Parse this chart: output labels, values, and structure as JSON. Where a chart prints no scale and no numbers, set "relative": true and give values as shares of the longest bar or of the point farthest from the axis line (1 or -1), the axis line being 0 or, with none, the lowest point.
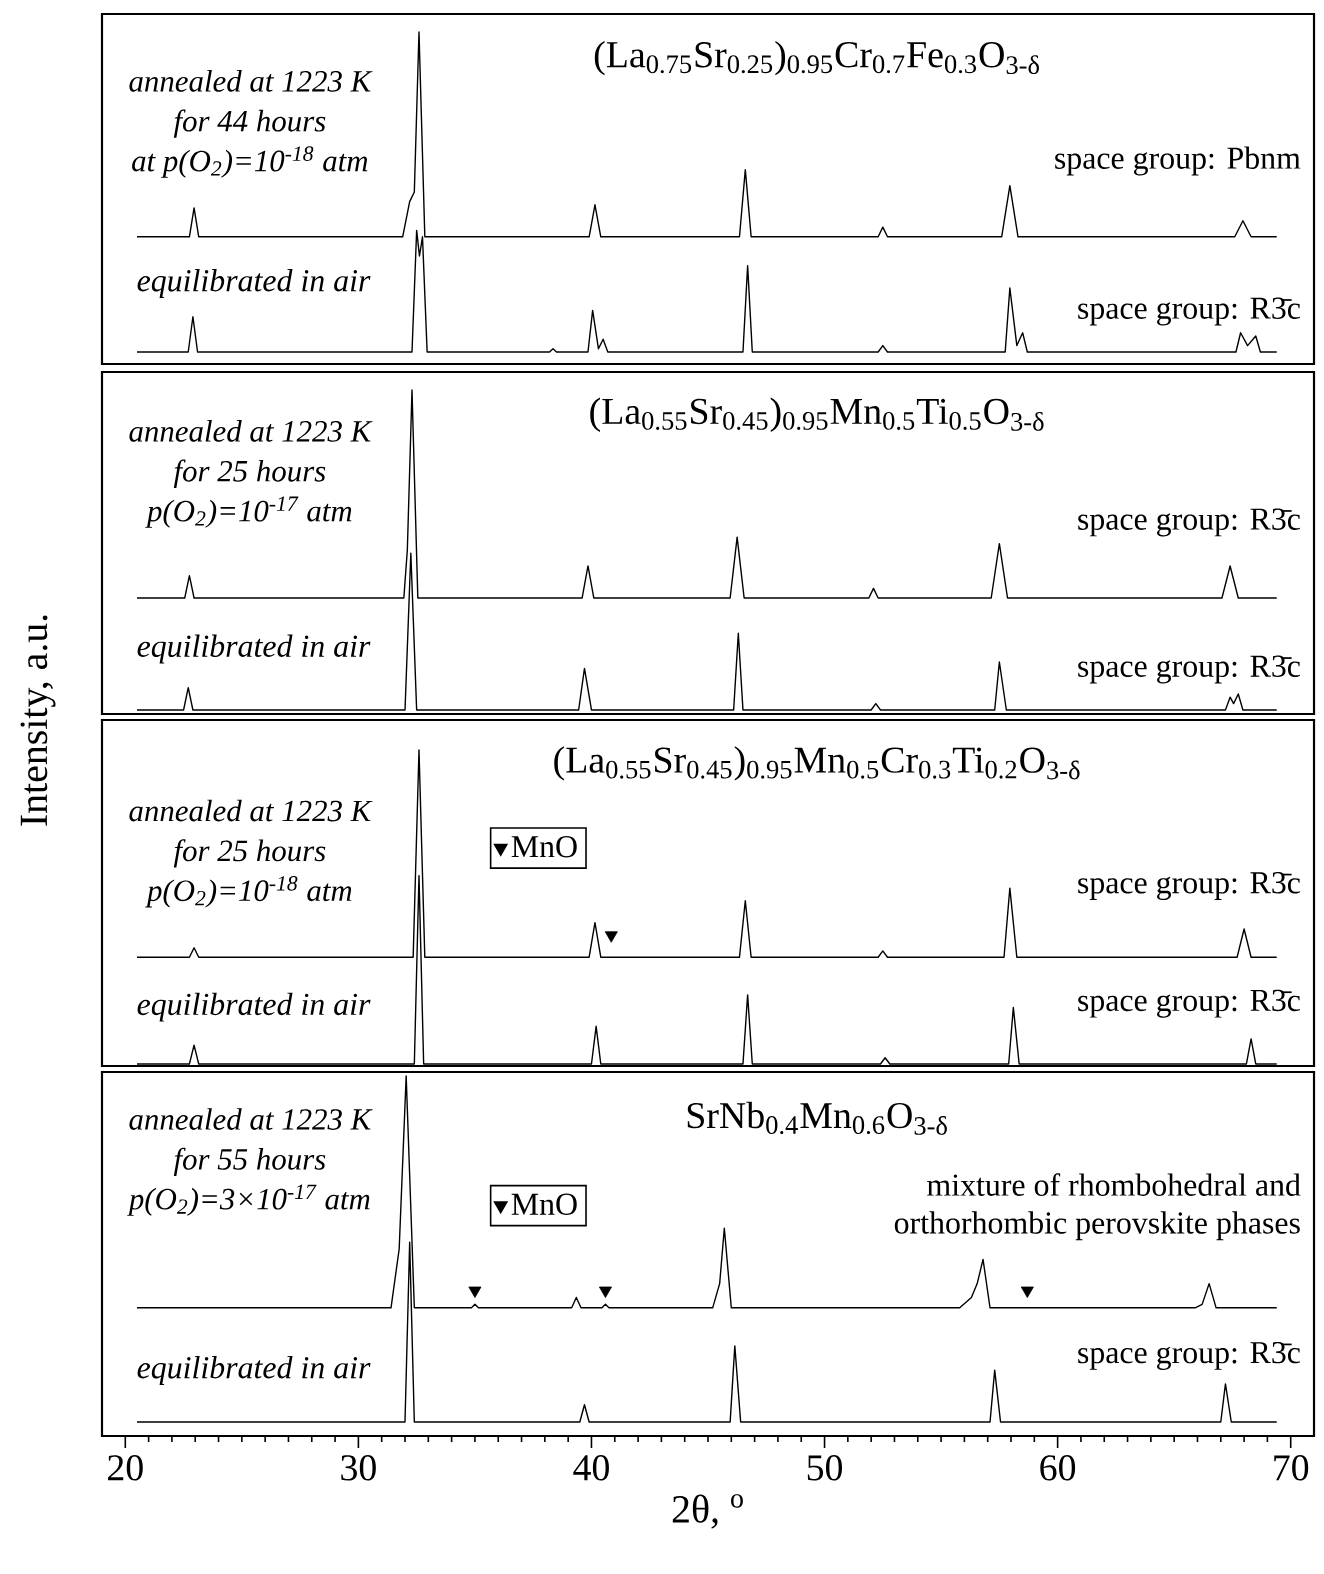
{
  "chart_data": [
    {
      "type": "line",
      "relative": true,
      "title": "(La$_{0.75}$Sr$_{0.25}$)$_{0.95}$Cr$_{0.7}$Fe$_{0.3}$O$_{3-δ}$",
      "xlim": [
        19,
        71
      ],
      "tick_labels": false,
      "annotations": [
        "annealed at 1223 K",
        "for 44 hours",
        "at p(O$_{2}$)=10$^{-18}$ atm",
        "space group: Pbnm",
        "space group: R3̄c"
      ],
      "series": [
        {
          "color": "#000000",
          "x": [
            20.5,
            22.75,
            22.95,
            23.15,
            31.9,
            32.2,
            32.4,
            32.6,
            32.85,
            39.9,
            40.15,
            40.4,
            46.35,
            46.6,
            46.85,
            52.3,
            52.5,
            52.7,
            57.6,
            57.95,
            58.3,
            67.6,
            67.95,
            68.3,
            69.4
          ],
          "values": [
            0.36,
            0.36,
            0.45,
            0.36,
            0.36,
            0.47,
            0.5,
            1.0,
            0.36,
            0.36,
            0.46,
            0.36,
            0.36,
            0.57,
            0.36,
            0.36,
            0.39,
            0.36,
            0.36,
            0.52,
            0.36,
            0.36,
            0.41,
            0.36,
            0.36
          ]
        },
        {
          "name": "equilibrated in air",
          "color": "#000000",
          "x": [
            20.5,
            22.7,
            22.9,
            23.1,
            32.3,
            32.5,
            32.62,
            32.75,
            32.95,
            38.2,
            38.35,
            38.5,
            39.85,
            40.05,
            40.3,
            40.5,
            40.7,
            46.5,
            46.7,
            46.9,
            52.3,
            52.5,
            52.7,
            57.75,
            57.95,
            58.25,
            58.5,
            58.7,
            67.65,
            67.85,
            68.15,
            68.5,
            68.7,
            69.4
          ],
          "values": [
            0,
            0,
            0.11,
            0,
            0,
            0.38,
            0.3,
            0.36,
            0,
            0,
            0.01,
            0,
            0,
            0.13,
            0.01,
            0.04,
            0,
            0,
            0.27,
            0,
            0,
            0.02,
            0,
            0,
            0.2,
            0.02,
            0.06,
            0,
            0,
            0.06,
            0.02,
            0.05,
            0,
            0
          ]
        }
      ]
    },
    {
      "type": "line",
      "relative": true,
      "title": "(La$_{0.55}$Sr$_{0.45}$)$_{0.95}$Mn$_{0.5}$Ti$_{0.5}$O$_{3-δ}$",
      "xlim": [
        19,
        71
      ],
      "tick_labels": false,
      "annotations": [
        "annealed at 1223 K",
        "for 25 hours",
        "p(O$_{2}$)=10$^{-17}$ atm",
        "space group: R3̄c",
        "space group: R3̄c"
      ],
      "series": [
        {
          "color": "#000000",
          "x": [
            20.5,
            22.55,
            22.75,
            22.95,
            31.95,
            32.1,
            32.3,
            32.55,
            39.6,
            39.85,
            40.1,
            45.95,
            46.25,
            46.55,
            51.9,
            52.1,
            52.3,
            57.15,
            57.5,
            57.85,
            67.05,
            67.4,
            67.75,
            69.4
          ],
          "values": [
            0.35,
            0.35,
            0.42,
            0.35,
            0.35,
            0.5,
            1.0,
            0.35,
            0.35,
            0.45,
            0.35,
            0.35,
            0.54,
            0.35,
            0.35,
            0.38,
            0.35,
            0.35,
            0.52,
            0.35,
            0.35,
            0.45,
            0.35,
            0.35
          ]
        },
        {
          "name": "equilibrated in air",
          "color": "#000000",
          "x": [
            20.5,
            22.5,
            22.7,
            22.9,
            32.0,
            32.25,
            32.5,
            39.45,
            39.7,
            40.0,
            46.1,
            46.3,
            46.5,
            52.0,
            52.2,
            52.4,
            57.3,
            57.5,
            57.8,
            67.2,
            67.4,
            67.55,
            67.75,
            67.95,
            69.4
          ],
          "values": [
            0,
            0,
            0.07,
            0,
            0,
            0.49,
            0,
            0,
            0.13,
            0,
            0,
            0.24,
            0,
            0,
            0.02,
            0,
            0,
            0.15,
            0,
            0,
            0.04,
            0.02,
            0.05,
            0,
            0
          ]
        }
      ]
    },
    {
      "type": "line",
      "relative": true,
      "title": "(La$_{0.55}$Sr$_{0.45}$)$_{0.95}$Mn$_{0.5}$Cr$_{0.3}$Ti$_{0.2}$O$_{3-δ}$",
      "xlim": [
        19,
        71
      ],
      "tick_labels": false,
      "ylabel": "Intensity, a.u.",
      "legend": "top left",
      "annotations": [
        "annealed at 1223 K",
        "for 25 hours",
        "p(O$_{2}$)=10$^{-18}$ atm",
        "space group: R3̄c",
        "space group: R3̄c"
      ],
      "series": [
        {
          "color": "#000000",
          "x": [
            20.5,
            22.75,
            22.95,
            23.15,
            32.35,
            32.6,
            32.85,
            39.9,
            40.15,
            40.4,
            46.35,
            46.6,
            46.85,
            52.3,
            52.5,
            52.7,
            57.7,
            57.95,
            58.25,
            67.7,
            68.0,
            68.3,
            69.4
          ],
          "values": [
            0.34,
            0.34,
            0.37,
            0.34,
            0.34,
            1.0,
            0.34,
            0.34,
            0.45,
            0.34,
            0.34,
            0.52,
            0.34,
            0.34,
            0.36,
            0.34,
            0.34,
            0.56,
            0.34,
            0.34,
            0.43,
            0.34,
            0.34
          ]
        },
        {
          "name": "equilibrated in air",
          "color": "#000000",
          "x": [
            20.5,
            22.75,
            22.95,
            23.15,
            32.4,
            32.6,
            32.8,
            40.0,
            40.2,
            40.4,
            46.5,
            46.7,
            46.9,
            52.4,
            52.6,
            52.8,
            57.9,
            58.1,
            58.35,
            68.1,
            68.3,
            68.5,
            69.4
          ],
          "values": [
            0,
            0,
            0.06,
            0,
            0,
            0.6,
            0,
            0,
            0.12,
            0,
            0,
            0.22,
            0,
            0,
            0.02,
            0,
            0,
            0.18,
            0,
            0,
            0.08,
            0,
            0
          ]
        },
        {
          "type": "scatter",
          "name": "MnO",
          "color": "#000000",
          "marker": "triangle",
          "x": [
            40.85
          ],
          "values": [
            0.41
          ]
        }
      ]
    },
    {
      "type": "line",
      "relative": true,
      "title": "SrNb$_{0.4}$Mn$_{0.6}$O$_{3-δ}$",
      "xlim": [
        19,
        71
      ],
      "xticks": [
        20,
        30,
        40,
        50,
        60,
        70
      ],
      "tick_labels": "x",
      "xlabel": "2θ, $^{o}$",
      "legend": "top left",
      "annotations": [
        "annealed at 1223 K",
        "for 55 hours",
        "p(O$_{2}$)=3×10$^{-17}$ atm",
        "mixture of rhombohedral and orthorhombic perovskite phases",
        "space group: R3̄c"
      ],
      "series": [
        {
          "color": "#000000",
          "x": [
            20.5,
            31.4,
            31.75,
            32.05,
            32.4,
            34.85,
            35.0,
            35.15,
            39.15,
            39.35,
            39.55,
            40.45,
            40.6,
            40.75,
            45.2,
            45.5,
            45.7,
            46.0,
            55.8,
            56.3,
            56.55,
            56.8,
            57.1,
            65.9,
            66.2,
            66.5,
            66.8,
            69.4
          ],
          "values": [
            0.33,
            0.33,
            0.5,
            1.0,
            0.33,
            0.33,
            0.34,
            0.33,
            0.33,
            0.36,
            0.33,
            0.33,
            0.34,
            0.33,
            0.33,
            0.4,
            0.56,
            0.33,
            0.33,
            0.36,
            0.4,
            0.47,
            0.33,
            0.33,
            0.34,
            0.4,
            0.33,
            0.33
          ]
        },
        {
          "name": "equilibrated in air",
          "color": "#000000",
          "x": [
            20.5,
            32.0,
            32.2,
            32.4,
            39.5,
            39.7,
            39.9,
            45.95,
            46.15,
            46.4,
            57.1,
            57.3,
            57.55,
            67.0,
            67.2,
            67.45,
            69.4
          ],
          "values": [
            0,
            0,
            0.52,
            0,
            0,
            0.05,
            0,
            0,
            0.22,
            0,
            0,
            0.15,
            0,
            0,
            0.11,
            0,
            0
          ]
        },
        {
          "type": "scatter",
          "name": "MnO",
          "color": "#000000",
          "marker": "triangle",
          "x": [
            35.0,
            40.6,
            58.7
          ],
          "values": [
            0.38,
            0.38,
            0.38
          ]
        }
      ]
    }
  ]
}
